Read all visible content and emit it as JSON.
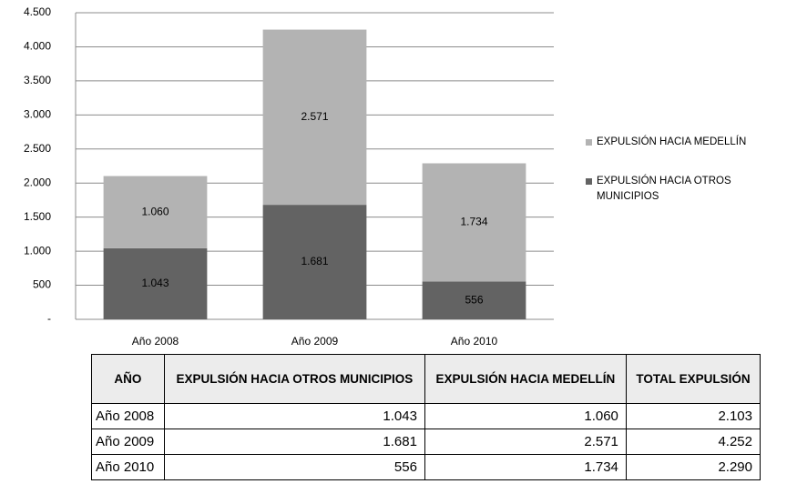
{
  "chart_data": {
    "type": "stacked_bar",
    "categories": [
      "Año 2008",
      "Año 2009",
      "Año 2010"
    ],
    "series": [
      {
        "name": "EXPULSIÓN HACIA OTROS MUNICIPIOS",
        "color": "#636363",
        "values": [
          1043,
          1681,
          556
        ],
        "value_labels": [
          "1.043",
          "1.681",
          "556"
        ]
      },
      {
        "name": "EXPULSIÓN HACIA MEDELLÍN",
        "color": "#b3b3b3",
        "values": [
          1060,
          2571,
          1734
        ],
        "value_labels": [
          "1.060",
          "2.571",
          "1.734"
        ]
      }
    ],
    "ylim": [
      0,
      4500
    ],
    "yticks": [
      {
        "value": 0,
        "label": "-"
      },
      500,
      {
        "value": 1000,
        "label": "1.000"
      },
      {
        "value": 1500,
        "label": "1.500"
      },
      {
        "value": 2000,
        "label": "2.000"
      },
      {
        "value": 2500,
        "label": "2.500"
      },
      {
        "value": 3000,
        "label": "3.000"
      },
      {
        "value": 3500,
        "label": "3.500"
      },
      {
        "value": 4000,
        "label": "4.000"
      },
      {
        "value": 4500,
        "label": "4.500"
      }
    ],
    "grid": true,
    "legend": "right"
  },
  "table": {
    "header": [
      "AÑO",
      "EXPULSIÓN HACIA OTROS MUNICIPIOS",
      "EXPULSIÓN HACIA MEDELLÍN",
      "TOTAL EXPULSIÓN"
    ],
    "rows": [
      [
        "Año 2008",
        "1.043",
        "1.060",
        "2.103"
      ],
      [
        "Año 2009",
        "1.681",
        "2.571",
        "4.252"
      ],
      [
        "Año 2010",
        "556",
        "1.734",
        "2.290"
      ]
    ]
  }
}
